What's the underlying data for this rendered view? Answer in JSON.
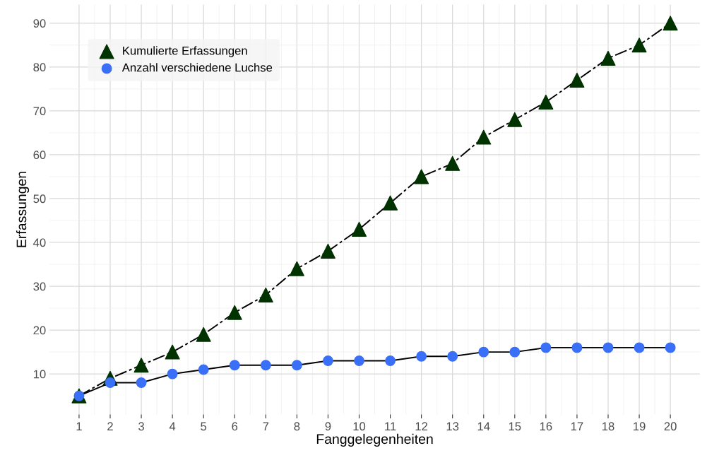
{
  "chart_data": {
    "type": "line",
    "xlabel": "Fanggelegenheiten",
    "ylabel": "Erfassungen",
    "x": [
      1,
      2,
      3,
      4,
      5,
      6,
      7,
      8,
      9,
      10,
      11,
      12,
      13,
      14,
      15,
      16,
      17,
      18,
      19,
      20
    ],
    "series": [
      {
        "name": "Kumulierte Erfassungen",
        "color": "#003300",
        "marker": "triangle",
        "line_style": "dashed",
        "values": [
          5,
          9,
          12,
          15,
          19,
          24,
          28,
          34,
          38,
          43,
          49,
          55,
          58,
          64,
          68,
          72,
          77,
          82,
          85,
          90
        ]
      },
      {
        "name": "Anzahl verschiedene Luchse",
        "color": "#3a6ff7",
        "marker": "circle",
        "line_style": "solid",
        "values": [
          5,
          8,
          8,
          10,
          11,
          12,
          12,
          12,
          13,
          13,
          13,
          14,
          14,
          15,
          15,
          16,
          16,
          16,
          16,
          16
        ]
      }
    ],
    "xlim": [
      0.05,
      20.95
    ],
    "xticks": [
      1,
      2,
      3,
      4,
      5,
      6,
      7,
      8,
      9,
      10,
      11,
      12,
      13,
      14,
      15,
      16,
      17,
      18,
      19,
      20
    ],
    "ylim": [
      0.75,
      94.25
    ],
    "yticks": [
      10,
      20,
      30,
      40,
      50,
      60,
      70,
      80,
      90
    ],
    "grid": true,
    "legend": "top left"
  }
}
